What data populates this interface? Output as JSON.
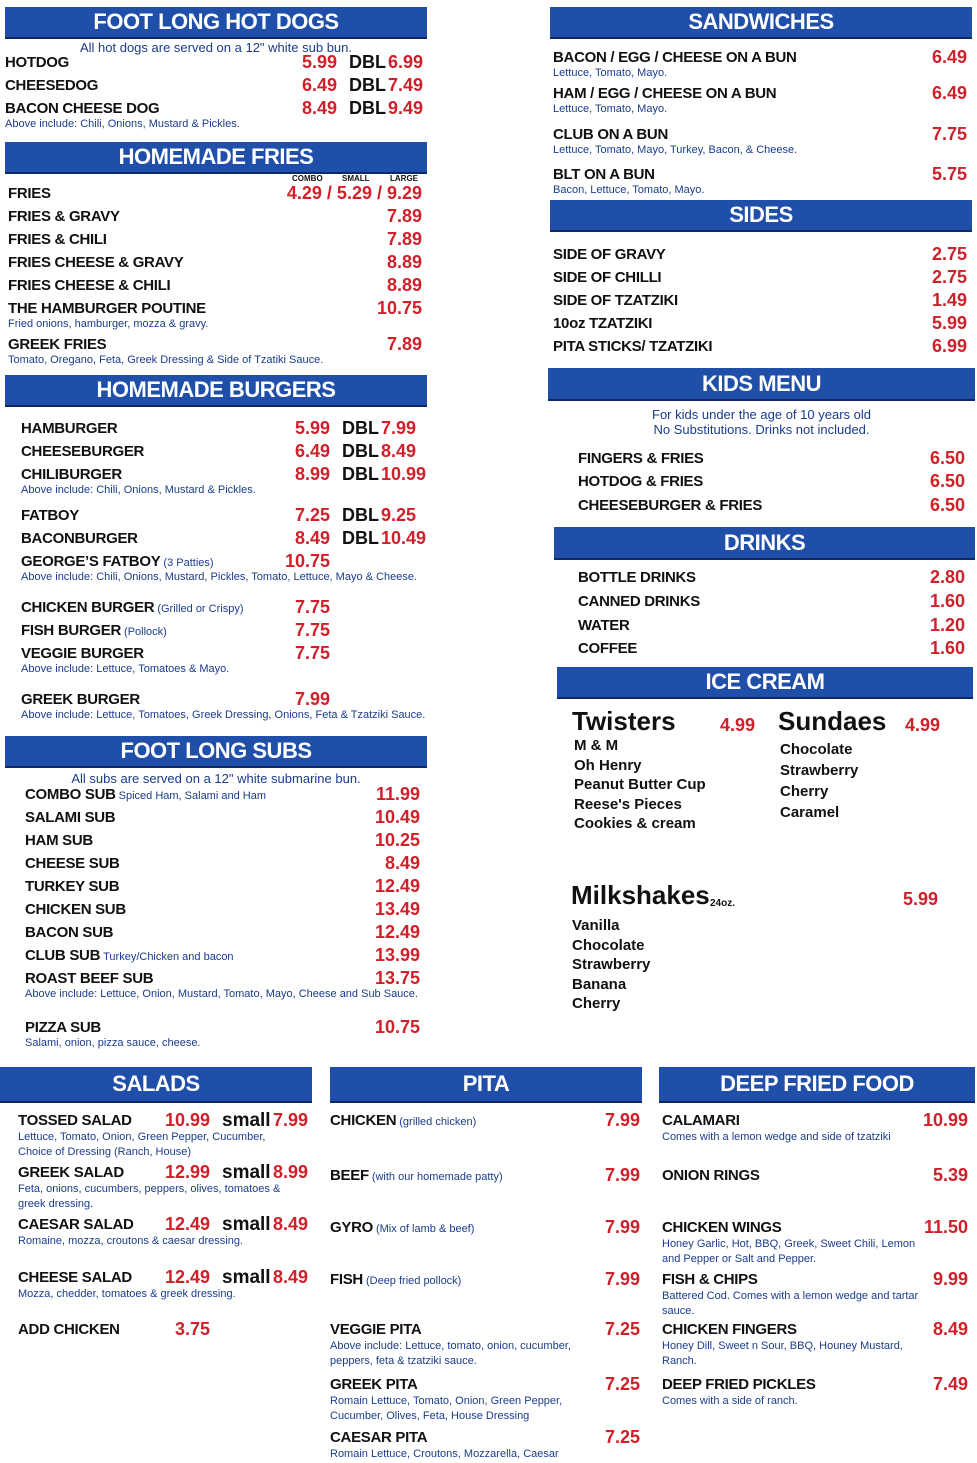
{
  "sections": [
    {
      "title": "FOOT LONG HOT DOGS",
      "note": "All hot dogs are served on a 12\" white sub bun.",
      "items": [
        {
          "name": "HOTDOG",
          "price": "5.99",
          "extra": {
            "label": "DBL",
            "price": "6.99"
          }
        },
        {
          "name": "CHEESEDOG",
          "price": "6.49",
          "extra": {
            "label": "DBL",
            "price": "7.49"
          }
        },
        {
          "name": "BACON CHEESE DOG",
          "price": "8.49",
          "extra": {
            "label": "DBL",
            "price": "9.49"
          },
          "note": "Above include: Chili, Onions, Mustard & Pickles."
        }
      ]
    },
    {
      "title": "HOMEMADE FRIES",
      "columns": [
        "COMBO",
        "SMALL",
        "LARGE"
      ],
      "items": [
        {
          "name": "FRIES",
          "price": "4.29 / 5.29 / 9.29"
        },
        {
          "name": "FRIES & GRAVY",
          "price": "7.89"
        },
        {
          "name": "FRIES & CHILI",
          "price": "7.89"
        },
        {
          "name": "FRIES CHEESE & GRAVY",
          "price": "8.89"
        },
        {
          "name": "FRIES CHEESE & CHILI",
          "price": "8.89"
        },
        {
          "name": "THE HAMBURGER POUTINE",
          "price": "10.75",
          "note": "Fried onions, hamburger, mozza & gravy."
        },
        {
          "name": "GREEK FRIES",
          "price": "7.89",
          "note": "Tomato, Oregano, Feta, Greek Dressing & Side of Tzatiki Sauce."
        }
      ]
    },
    {
      "title": "HOMEMADE BURGERS",
      "items": [
        {
          "name": "HAMBURGER",
          "price": "5.99",
          "extra": {
            "label": "DBL",
            "price": "7.99"
          }
        },
        {
          "name": "CHEESEBURGER",
          "price": "6.49",
          "extra": {
            "label": "DBL",
            "price": "8.49"
          }
        },
        {
          "name": "CHILIBURGER",
          "price": "8.99",
          "extra": {
            "label": "DBL",
            "price": "10.99"
          },
          "note": "Above include: Chili, Onions, Mustard & Pickles."
        },
        {
          "name": "FATBOY",
          "price": "7.25",
          "extra": {
            "label": "DBL",
            "price": "9.25"
          }
        },
        {
          "name": "BACONBURGER",
          "price": "8.49",
          "extra": {
            "label": "DBL",
            "price": "10.49"
          }
        },
        {
          "name": "GEORGE’S FATBOY",
          "detail": "(3 Patties)",
          "price": "10.75",
          "note": "Above include: Chili, Onions, Mustard, Pickles, Tomato, Lettuce, Mayo & Cheese."
        },
        {
          "name": "CHICKEN BURGER",
          "detail": "(Grilled or Crispy)",
          "price": "7.75"
        },
        {
          "name": "FISH BURGER",
          "detail": "(Pollock)",
          "price": "7.75"
        },
        {
          "name": "VEGGIE BURGER",
          "price": "7.75",
          "note": "Above include: Lettuce, Tomatoes & Mayo."
        },
        {
          "name": "GREEK BURGER",
          "price": "7.99",
          "note": "Above include: Lettuce, Tomatoes, Greek Dressing, Onions, Feta & Tzatziki Sauce."
        }
      ]
    },
    {
      "title": "FOOT LONG SUBS",
      "note": "All subs are served on a 12\" white submarine bun.",
      "items": [
        {
          "name": "COMBO SUB",
          "detail": "Spiced Ham, Salami and Ham",
          "price": "11.99"
        },
        {
          "name": "SALAMI SUB",
          "price": "10.49"
        },
        {
          "name": "HAM SUB",
          "price": "10.25"
        },
        {
          "name": "CHEESE SUB",
          "price": "8.49"
        },
        {
          "name": "TURKEY SUB",
          "price": "12.49"
        },
        {
          "name": "CHICKEN SUB",
          "price": "13.49"
        },
        {
          "name": "BACON SUB",
          "price": "12.49"
        },
        {
          "name": "CLUB SUB",
          "detail": "Turkey/Chicken and bacon",
          "price": "13.99"
        },
        {
          "name": "ROAST BEEF SUB",
          "price": "13.75",
          "note": "Above include: Lettuce, Onion, Mustard, Tomato, Mayo, Cheese and Sub Sauce."
        },
        {
          "name": "PIZZA SUB",
          "price": "10.75",
          "note": "Salami, onion, pizza sauce, cheese."
        }
      ]
    },
    {
      "title": "SANDWICHES",
      "items": [
        {
          "name": "BACON / EGG / CHEESE ON A BUN",
          "price": "6.49",
          "note": "Lettuce, Tomato, Mayo."
        },
        {
          "name": "HAM / EGG / CHEESE ON A BUN",
          "price": "6.49",
          "note": "Lettuce, Tomato, Mayo."
        },
        {
          "name": "CLUB ON A BUN",
          "price": "7.75",
          "note": "Lettuce, Tomato, Mayo, Turkey, Bacon, & Cheese."
        },
        {
          "name": "BLT ON A BUN",
          "price": "5.75",
          "note": "Bacon, Lettuce, Tomato, Mayo."
        }
      ]
    },
    {
      "title": "SIDES",
      "items": [
        {
          "name": "SIDE OF GRAVY",
          "price": "2.75"
        },
        {
          "name": "SIDE OF CHILLI",
          "price": "2.75"
        },
        {
          "name": "SIDE OF TZATZIKI",
          "price": "1.49"
        },
        {
          "name": "10oz TZATZIKI",
          "price": "5.99"
        },
        {
          "name": "PITA STICKS/ TZATZIKI",
          "price": "6.99"
        }
      ]
    },
    {
      "title": "KIDS MENU",
      "note": "For kids under the age of 10 years old",
      "note2": "No Substitutions. Drinks not included.",
      "items": [
        {
          "name": "FINGERS & FRIES",
          "price": "6.50"
        },
        {
          "name": "HOTDOG & FRIES",
          "price": "6.50"
        },
        {
          "name": "CHEESEBURGER & FRIES",
          "price": "6.50"
        }
      ]
    },
    {
      "title": "DRINKS",
      "items": [
        {
          "name": "BOTTLE DRINKS",
          "price": "2.80"
        },
        {
          "name": "CANNED DRINKS",
          "price": "1.60"
        },
        {
          "name": "WATER",
          "price": "1.20"
        },
        {
          "name": "COFFEE",
          "price": "1.60"
        }
      ]
    },
    {
      "title": "SALADS",
      "items": [
        {
          "name": "TOSSED SALAD",
          "price": "10.99",
          "extra": {
            "label": "small",
            "price": "7.99"
          },
          "note": "Lettuce, Tomato, Onion, Green Pepper, Cucumber, Choice of Dressing (Ranch, House)"
        },
        {
          "name": "GREEK SALAD",
          "price": "12.99",
          "extra": {
            "label": "small",
            "price": "8.99"
          },
          "note": "Feta, onions, cucumbers, peppers, olives, tomatoes & greek dressing."
        },
        {
          "name": "CAESAR SALAD",
          "price": "12.49",
          "extra": {
            "label": "small",
            "price": "8.49"
          },
          "note": "Romaine, mozza, croutons & caesar dressing."
        },
        {
          "name": "CHEESE SALAD",
          "price": "12.49",
          "extra": {
            "label": "small",
            "price": "8.49"
          },
          "note": "Mozza, chedder, tomatoes & greek dressing."
        },
        {
          "name": "ADD CHICKEN",
          "price": "3.75"
        }
      ]
    },
    {
      "title": "PITA",
      "items": [
        {
          "name": "CHICKEN",
          "detail": "(grilled chicken)",
          "price": "7.99"
        },
        {
          "name": "BEEF",
          "detail": "(with our homemade patty)",
          "price": "7.99"
        },
        {
          "name": "GYRO",
          "detail": "(Mix of lamb & beef)",
          "price": "7.99"
        },
        {
          "name": "FISH",
          "detail": "(Deep fried pollock)",
          "price": "7.99"
        },
        {
          "name": "VEGGIE PITA",
          "price": "7.25",
          "note": "Above include: Lettuce, tomato, onion, cucumber, peppers, feta & tzatziki sauce."
        },
        {
          "name": "GREEK PITA",
          "price": "7.25",
          "note": "Romain Lettuce, Tomato, Onion, Green Pepper, Cucumber, Olives, Feta, House Dressing"
        },
        {
          "name": "CAESAR PITA",
          "price": "7.25",
          "note": "Romain Lettuce, Croutons, Mozzarella, Caesar Dressing"
        }
      ]
    },
    {
      "title": "DEEP FRIED FOOD",
      "items": [
        {
          "name": "CALAMARI",
          "price": "10.99",
          "note": "Comes with a lemon wedge and side of tzatziki"
        },
        {
          "name": "ONION RINGS",
          "price": "5.39"
        },
        {
          "name": "CHICKEN WINGS",
          "price": "11.50",
          "note": "Honey Garlic, Hot, BBQ, Greek, Sweet Chili, Lemon and Pepper or Salt and Pepper."
        },
        {
          "name": "FISH & CHIPS",
          "price": "9.99",
          "note": "Battered Cod. Comes with a lemon wedge and tartar sauce."
        },
        {
          "name": "CHICKEN FINGERS",
          "price": "8.49",
          "note": "Honey Dill, Sweet n Sour, BBQ, Houney Mustard, Ranch."
        },
        {
          "name": "DEEP FRIED PICKLES",
          "price": "7.49",
          "note": "Comes with a side of ranch."
        }
      ]
    }
  ],
  "icecream": {
    "title": "ICE CREAM",
    "groups": [
      {
        "name": "Twisters",
        "price": "4.99",
        "flavors": [
          "M & M",
          "Oh Henry",
          "Peanut Butter Cup",
          "Reese's Pieces",
          "Cookies & cream"
        ]
      },
      {
        "name": "Sundaes",
        "price": "4.99",
        "flavors": [
          "Chocolate",
          "Strawberry",
          "Cherry",
          "Caramel"
        ]
      },
      {
        "name": "Milkshakes",
        "detail": "24oz.",
        "price": "5.99",
        "flavors": [
          "Vanilla",
          "Chocolate",
          "Strawberry",
          "Banana",
          "Cherry"
        ]
      }
    ]
  }
}
